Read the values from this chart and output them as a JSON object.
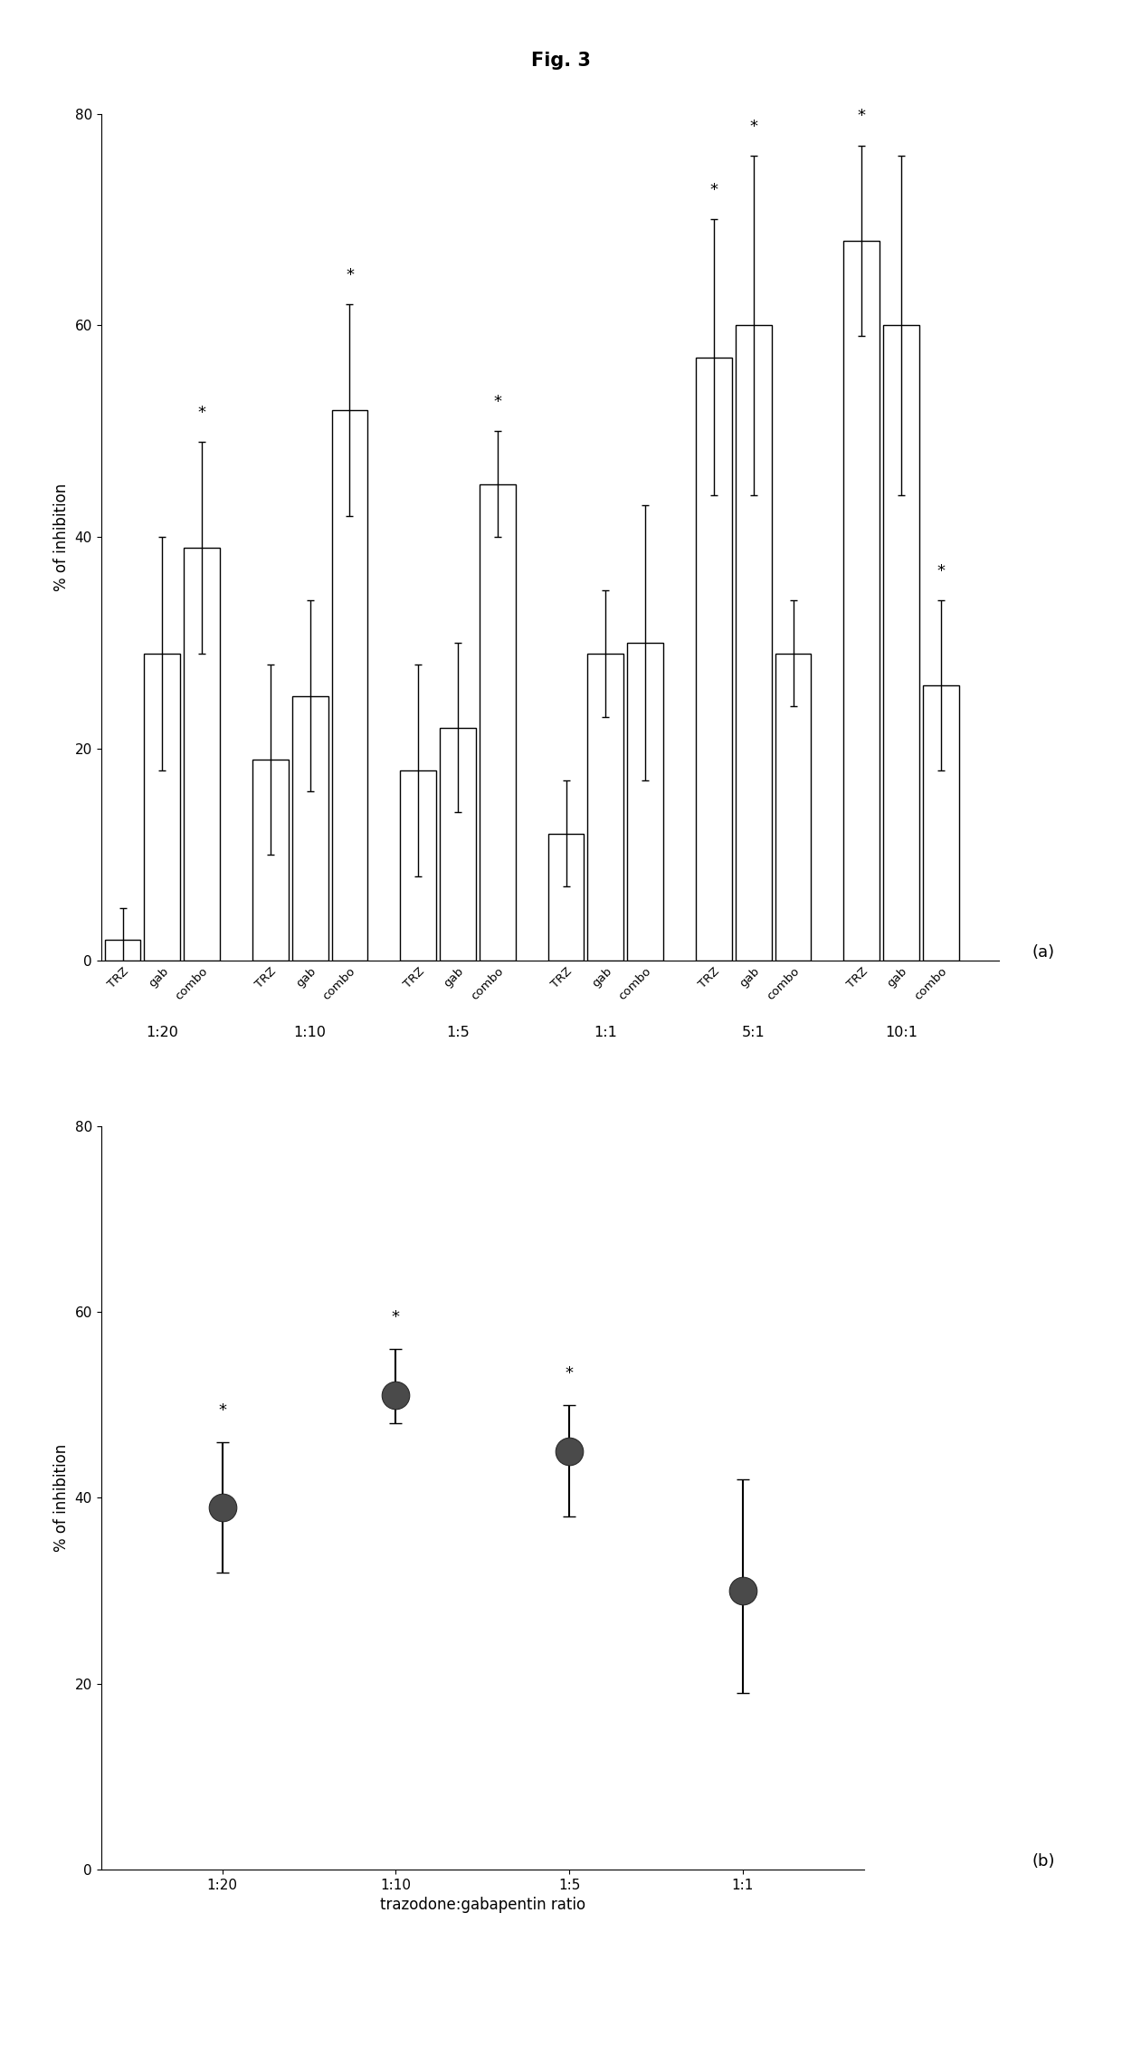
{
  "title": "Fig. 3",
  "panel_a": {
    "ylabel": "% of inhibition",
    "ylim": [
      0,
      80
    ],
    "yticks": [
      0,
      20,
      40,
      60,
      80
    ],
    "groups": [
      "1:20",
      "1:10",
      "1:5",
      "1:1",
      "5:1",
      "10:1"
    ],
    "bar_labels": [
      "TRZ",
      "gab",
      "combo"
    ],
    "bar_values": [
      [
        2,
        29,
        39
      ],
      [
        19,
        25,
        52
      ],
      [
        18,
        22,
        45
      ],
      [
        12,
        29,
        30
      ],
      [
        57,
        60,
        29
      ],
      [
        68,
        60,
        26
      ]
    ],
    "bar_errors": [
      [
        3,
        11,
        10
      ],
      [
        9,
        9,
        10
      ],
      [
        10,
        8,
        5
      ],
      [
        5,
        6,
        13
      ],
      [
        13,
        16,
        5
      ],
      [
        9,
        16,
        8
      ]
    ],
    "star_bars": [
      [
        2
      ],
      [
        2
      ],
      [
        2
      ],
      [],
      [
        0,
        1
      ],
      [
        0,
        2
      ]
    ]
  },
  "panel_b": {
    "ylabel": "% of inhibition",
    "xlabel": "trazodone:gabapentin ratio",
    "ylim": [
      0,
      80
    ],
    "yticks": [
      0,
      20,
      40,
      60,
      80
    ],
    "xticklabels": [
      "1:20",
      "1:10",
      "1:5",
      "1:1"
    ],
    "values": [
      39,
      51,
      45,
      30
    ],
    "errors_upper": [
      7,
      5,
      5,
      12
    ],
    "errors_lower": [
      7,
      3,
      7,
      11
    ],
    "significant": [
      true,
      true,
      true,
      false
    ]
  },
  "label_a": "(a)",
  "label_b": "(b)"
}
